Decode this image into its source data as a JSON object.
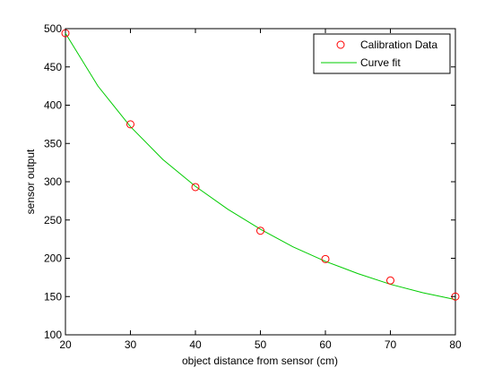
{
  "chart_data": {
    "type": "scatter",
    "xlabel": "object distance from sensor (cm)",
    "ylabel": "sensor output",
    "xlim": [
      20,
      80
    ],
    "ylim": [
      100,
      500
    ],
    "xticks": [
      20,
      30,
      40,
      50,
      60,
      70,
      80
    ],
    "yticks": [
      100,
      150,
      200,
      250,
      300,
      350,
      400,
      450,
      500
    ],
    "grid": false,
    "legend": "top-right",
    "series": [
      {
        "name": "Calibration Data",
        "marker": "circle",
        "color": "#ff0000",
        "x": [
          20,
          30,
          40,
          50,
          60,
          70,
          80
        ],
        "y": [
          494,
          375,
          293,
          236,
          199,
          171,
          150
        ]
      },
      {
        "name": "Curve fit",
        "style": "line",
        "color": "#00cc00",
        "x": [
          20,
          25,
          30,
          35,
          40,
          45,
          50,
          55,
          60,
          65,
          70,
          75,
          80
        ],
        "y": [
          494,
          425,
          372,
          329,
          294,
          264,
          238,
          215,
          196,
          180,
          166,
          155,
          146
        ]
      }
    ]
  }
}
